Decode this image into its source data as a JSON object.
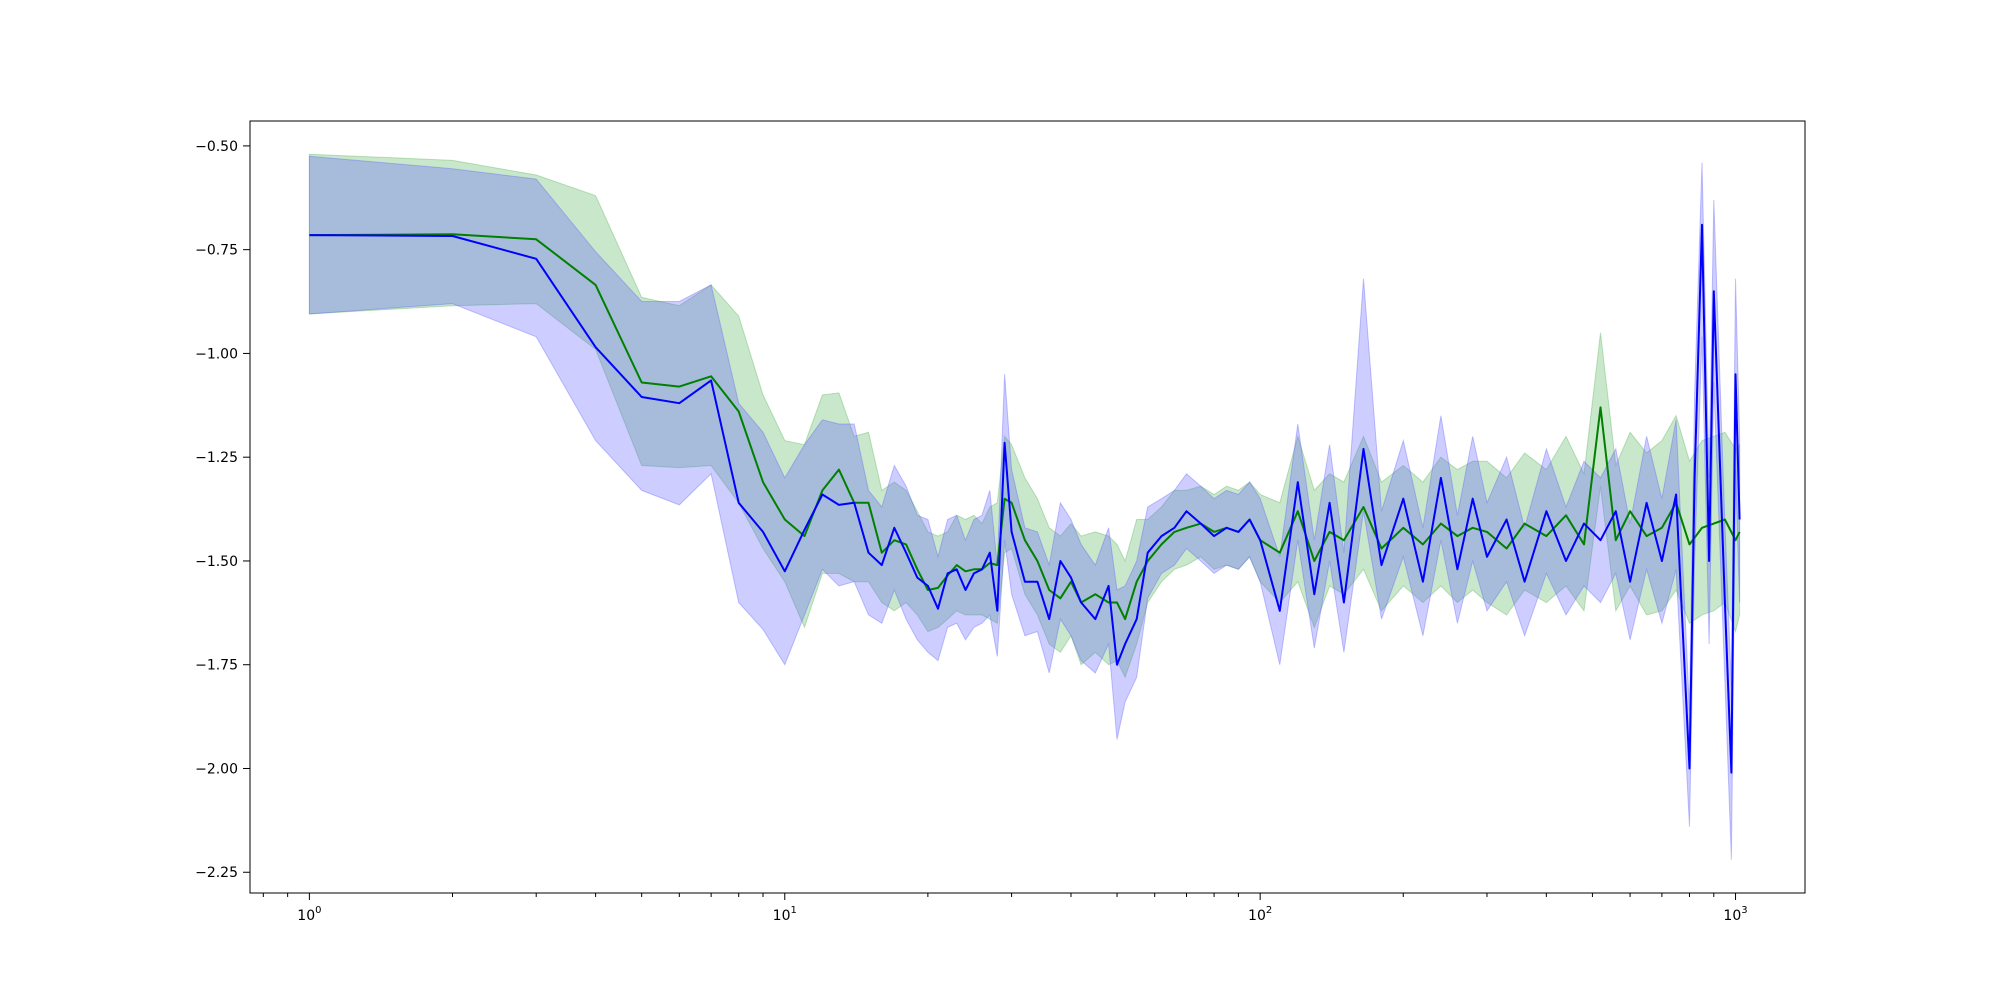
{
  "chart_data": {
    "type": "line",
    "title": "",
    "xlabel": "",
    "ylabel": "",
    "x_scale": "log",
    "xlim": [
      0.75,
      1400
    ],
    "ylim": [
      -2.3,
      -0.44
    ],
    "grid": false,
    "legend": "none",
    "x_ticks": [
      {
        "value": 1,
        "base": "10",
        "exp": "0"
      },
      {
        "value": 10,
        "base": "10",
        "exp": "1"
      },
      {
        "value": 100,
        "base": "10",
        "exp": "2"
      },
      {
        "value": 1000,
        "base": "10",
        "exp": "3"
      }
    ],
    "y_ticks": [
      {
        "value": -0.5,
        "label": "−0.50"
      },
      {
        "value": -0.75,
        "label": "−0.75"
      },
      {
        "value": -1.0,
        "label": "−1.00"
      },
      {
        "value": -1.25,
        "label": "−1.25"
      },
      {
        "value": -1.5,
        "label": "−1.50"
      },
      {
        "value": -1.75,
        "label": "−1.75"
      },
      {
        "value": -2.0,
        "label": "−2.00"
      },
      {
        "value": -2.25,
        "label": "−2.25"
      }
    ],
    "series": [
      {
        "color": "#008000",
        "band_color": "#4caf50",
        "x": [
          1,
          2,
          3,
          4,
          5,
          6,
          7,
          8,
          9,
          10,
          11,
          12,
          13,
          14,
          15,
          16,
          17,
          18,
          19,
          20,
          21,
          22,
          23,
          24,
          25,
          26,
          27,
          28,
          29,
          30,
          32,
          34,
          36,
          38,
          40,
          42,
          45,
          48,
          50,
          52,
          55,
          58,
          62,
          66,
          70,
          75,
          80,
          85,
          90,
          95,
          100,
          110,
          120,
          130,
          140,
          150,
          165,
          180,
          200,
          220,
          240,
          260,
          280,
          300,
          330,
          360,
          400,
          440,
          480,
          520,
          560,
          600,
          650,
          700,
          750,
          800,
          850,
          900,
          950,
          1000,
          1020
        ],
        "y": [
          -0.715,
          -0.713,
          -0.725,
          -0.835,
          -1.07,
          -1.08,
          -1.055,
          -1.14,
          -1.31,
          -1.4,
          -1.44,
          -1.33,
          -1.28,
          -1.36,
          -1.36,
          -1.48,
          -1.45,
          -1.46,
          -1.52,
          -1.57,
          -1.565,
          -1.535,
          -1.51,
          -1.525,
          -1.52,
          -1.52,
          -1.505,
          -1.51,
          -1.35,
          -1.36,
          -1.45,
          -1.5,
          -1.57,
          -1.59,
          -1.55,
          -1.6,
          -1.58,
          -1.6,
          -1.6,
          -1.64,
          -1.55,
          -1.5,
          -1.46,
          -1.43,
          -1.42,
          -1.41,
          -1.43,
          -1.42,
          -1.43,
          -1.4,
          -1.45,
          -1.48,
          -1.38,
          -1.5,
          -1.43,
          -1.45,
          -1.37,
          -1.47,
          -1.42,
          -1.46,
          -1.41,
          -1.44,
          -1.42,
          -1.43,
          -1.47,
          -1.41,
          -1.44,
          -1.39,
          -1.46,
          -1.13,
          -1.45,
          -1.38,
          -1.44,
          -1.42,
          -1.36,
          -1.46,
          -1.42,
          -1.41,
          -1.4,
          -1.45,
          -1.43
        ],
        "lower": [
          -0.905,
          -0.885,
          -0.88,
          -0.99,
          -1.27,
          -1.275,
          -1.27,
          -1.36,
          -1.47,
          -1.55,
          -1.66,
          -1.53,
          -1.53,
          -1.55,
          -1.55,
          -1.6,
          -1.62,
          -1.6,
          -1.63,
          -1.67,
          -1.66,
          -1.64,
          -1.62,
          -1.63,
          -1.63,
          -1.63,
          -1.64,
          -1.65,
          -1.48,
          -1.47,
          -1.58,
          -1.63,
          -1.7,
          -1.72,
          -1.68,
          -1.75,
          -1.72,
          -1.75,
          -1.74,
          -1.78,
          -1.7,
          -1.6,
          -1.55,
          -1.52,
          -1.51,
          -1.49,
          -1.52,
          -1.51,
          -1.52,
          -1.49,
          -1.55,
          -1.6,
          -1.55,
          -1.66,
          -1.56,
          -1.58,
          -1.52,
          -1.62,
          -1.56,
          -1.6,
          -1.56,
          -1.6,
          -1.57,
          -1.6,
          -1.63,
          -1.57,
          -1.6,
          -1.56,
          -1.62,
          -1.32,
          -1.62,
          -1.56,
          -1.63,
          -1.62,
          -1.57,
          -1.65,
          -1.63,
          -1.62,
          -1.6,
          -1.67,
          -1.63
        ],
        "upper": [
          -0.52,
          -0.535,
          -0.57,
          -0.62,
          -0.865,
          -0.885,
          -0.835,
          -0.91,
          -1.1,
          -1.21,
          -1.22,
          -1.1,
          -1.095,
          -1.2,
          -1.19,
          -1.33,
          -1.31,
          -1.33,
          -1.38,
          -1.43,
          -1.44,
          -1.43,
          -1.39,
          -1.4,
          -1.39,
          -1.41,
          -1.37,
          -1.36,
          -1.2,
          -1.22,
          -1.3,
          -1.35,
          -1.42,
          -1.44,
          -1.41,
          -1.44,
          -1.43,
          -1.44,
          -1.46,
          -1.5,
          -1.4,
          -1.4,
          -1.37,
          -1.33,
          -1.33,
          -1.32,
          -1.34,
          -1.32,
          -1.33,
          -1.31,
          -1.34,
          -1.36,
          -1.2,
          -1.33,
          -1.29,
          -1.31,
          -1.2,
          -1.31,
          -1.27,
          -1.31,
          -1.25,
          -1.28,
          -1.26,
          -1.26,
          -1.3,
          -1.24,
          -1.28,
          -1.2,
          -1.29,
          -0.95,
          -1.27,
          -1.19,
          -1.24,
          -1.21,
          -1.15,
          -1.26,
          -1.21,
          -1.2,
          -1.19,
          -1.23,
          -1.22
        ]
      },
      {
        "color": "#0000ff",
        "band_color": "#5a5aff",
        "x": [
          1,
          2,
          3,
          4,
          5,
          6,
          7,
          8,
          9,
          10,
          11,
          12,
          13,
          14,
          15,
          16,
          17,
          18,
          19,
          20,
          21,
          22,
          23,
          24,
          25,
          26,
          27,
          28,
          29,
          30,
          32,
          34,
          36,
          38,
          40,
          42,
          45,
          48,
          50,
          52,
          55,
          58,
          62,
          66,
          70,
          75,
          80,
          85,
          90,
          95,
          100,
          110,
          120,
          130,
          140,
          150,
          165,
          180,
          200,
          220,
          240,
          260,
          280,
          300,
          330,
          360,
          400,
          440,
          480,
          520,
          560,
          600,
          650,
          700,
          750,
          800,
          820,
          850,
          880,
          900,
          950,
          980,
          1000,
          1020
        ],
        "y": [
          -0.715,
          -0.717,
          -0.772,
          -0.985,
          -1.105,
          -1.12,
          -1.065,
          -1.36,
          -1.43,
          -1.525,
          -1.425,
          -1.34,
          -1.365,
          -1.36,
          -1.48,
          -1.51,
          -1.42,
          -1.48,
          -1.54,
          -1.56,
          -1.615,
          -1.53,
          -1.52,
          -1.57,
          -1.53,
          -1.52,
          -1.48,
          -1.62,
          -1.215,
          -1.43,
          -1.55,
          -1.55,
          -1.64,
          -1.5,
          -1.54,
          -1.6,
          -1.64,
          -1.56,
          -1.75,
          -1.7,
          -1.64,
          -1.48,
          -1.44,
          -1.42,
          -1.38,
          -1.41,
          -1.44,
          -1.42,
          -1.43,
          -1.4,
          -1.45,
          -1.62,
          -1.31,
          -1.58,
          -1.36,
          -1.6,
          -1.23,
          -1.51,
          -1.35,
          -1.55,
          -1.3,
          -1.52,
          -1.35,
          -1.49,
          -1.4,
          -1.55,
          -1.38,
          -1.5,
          -1.41,
          -1.45,
          -1.38,
          -1.55,
          -1.36,
          -1.5,
          -1.34,
          -2.0,
          -1.3,
          -0.69,
          -1.5,
          -0.85,
          -1.6,
          -2.01,
          -1.05,
          -1.4
        ],
        "lower": [
          -0.905,
          -0.88,
          -0.96,
          -1.21,
          -1.33,
          -1.365,
          -1.29,
          -1.6,
          -1.665,
          -1.75,
          -1.63,
          -1.52,
          -1.56,
          -1.55,
          -1.63,
          -1.65,
          -1.57,
          -1.64,
          -1.69,
          -1.72,
          -1.74,
          -1.66,
          -1.65,
          -1.69,
          -1.66,
          -1.65,
          -1.63,
          -1.73,
          -1.45,
          -1.58,
          -1.68,
          -1.67,
          -1.77,
          -1.64,
          -1.68,
          -1.74,
          -1.77,
          -1.7,
          -1.93,
          -1.84,
          -1.78,
          -1.59,
          -1.53,
          -1.51,
          -1.47,
          -1.5,
          -1.53,
          -1.51,
          -1.52,
          -1.49,
          -1.55,
          -1.75,
          -1.45,
          -1.71,
          -1.5,
          -1.72,
          -1.38,
          -1.64,
          -1.49,
          -1.68,
          -1.45,
          -1.65,
          -1.5,
          -1.62,
          -1.55,
          -1.68,
          -1.53,
          -1.63,
          -1.56,
          -1.6,
          -1.53,
          -1.69,
          -1.52,
          -1.65,
          -1.52,
          -2.14,
          -1.5,
          -0.96,
          -1.7,
          -1.07,
          -1.79,
          -2.22,
          -1.28,
          -1.6
        ],
        "upper": [
          -0.525,
          -0.555,
          -0.58,
          -0.755,
          -0.875,
          -0.875,
          -0.835,
          -1.12,
          -1.19,
          -1.3,
          -1.22,
          -1.16,
          -1.17,
          -1.17,
          -1.33,
          -1.37,
          -1.27,
          -1.32,
          -1.39,
          -1.4,
          -1.49,
          -1.4,
          -1.39,
          -1.45,
          -1.4,
          -1.39,
          -1.33,
          -1.51,
          -1.05,
          -1.28,
          -1.42,
          -1.43,
          -1.51,
          -1.36,
          -1.4,
          -1.46,
          -1.51,
          -1.42,
          -1.57,
          -1.56,
          -1.5,
          -1.37,
          -1.35,
          -1.33,
          -1.29,
          -1.32,
          -1.35,
          -1.33,
          -1.34,
          -1.31,
          -1.35,
          -1.49,
          -1.17,
          -1.45,
          -1.22,
          -1.48,
          -0.82,
          -1.38,
          -1.21,
          -1.42,
          -1.15,
          -1.39,
          -1.2,
          -1.36,
          -1.25,
          -1.42,
          -1.23,
          -1.37,
          -1.26,
          -1.3,
          -1.23,
          -1.41,
          -1.2,
          -1.35,
          -1.16,
          -1.86,
          -1.1,
          -0.54,
          -1.3,
          -0.63,
          -1.41,
          -1.8,
          -0.82,
          -1.2
        ]
      }
    ]
  }
}
